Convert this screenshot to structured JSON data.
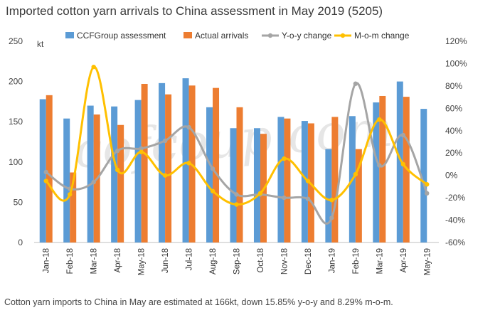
{
  "caption": "Cotton yarn imports to China in May are estimated at 166kt, down 15.85% y-o-y and 8.29% m-o-m.",
  "watermark": "cofcoup.com",
  "chart_data": {
    "type": "bar",
    "title": "Imported cotton yarn arrivals to China assessment in May 2019 (5205)",
    "ylabel": "kt",
    "ylim": [
      0,
      250
    ],
    "yticks": [
      "0",
      "50",
      "100",
      "150",
      "200",
      "250"
    ],
    "y2lim": [
      -60,
      120
    ],
    "y2ticks": [
      "-60%",
      "-40%",
      "-20%",
      "0%",
      "20%",
      "40%",
      "60%",
      "80%",
      "100%",
      "120%"
    ],
    "categories": [
      "Jan-18",
      "Feb-18",
      "Mar-18",
      "Apr-18",
      "May-18",
      "Jun-18",
      "Jul-18",
      "Aug-18",
      "Sep-18",
      "Oct-18",
      "Nov-18",
      "Dec-18",
      "Jan-19",
      "Feb-19",
      "Mar-19",
      "Apr-19",
      "May-19"
    ],
    "series": [
      {
        "name": "CCFGroup assessment",
        "type": "bar",
        "color": "#5b9bd5",
        "values": [
          178,
          154,
          170,
          169,
          177,
          198,
          204,
          168,
          142,
          142,
          156,
          151,
          116,
          157,
          174,
          200,
          166
        ]
      },
      {
        "name": "Actual arrivals",
        "type": "bar",
        "color": "#ed7d31",
        "values": [
          183,
          87,
          159,
          146,
          197,
          184,
          195,
          192,
          168,
          135,
          154,
          148,
          156,
          116,
          182,
          181,
          null
        ]
      },
      {
        "name": "Y-o-y change",
        "type": "line",
        "axis": "right",
        "color": "#a5a5a5",
        "values": [
          3,
          -12,
          -6,
          22,
          24,
          31,
          43,
          6,
          -17,
          -17,
          -20,
          -21,
          -38,
          82,
          9,
          36,
          -16
        ]
      },
      {
        "name": "M-o-m change",
        "type": "line",
        "axis": "right",
        "color": "#ffc000",
        "values": [
          -5,
          -17,
          97,
          5,
          21,
          0,
          11,
          -14,
          -26,
          -16,
          15,
          -5,
          -22,
          1,
          50,
          10,
          -8
        ]
      }
    ]
  }
}
